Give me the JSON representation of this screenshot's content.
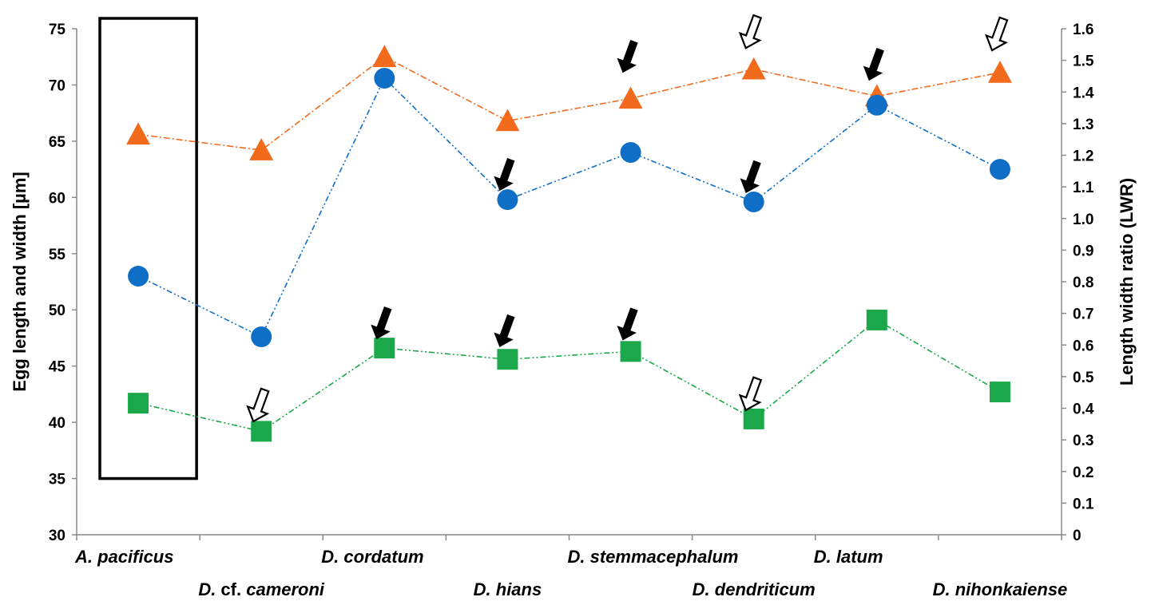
{
  "chart_data": {
    "type": "line",
    "categories": [
      "A. pacificus",
      "D. cf. cameroni",
      "D. cordatum",
      "D. hians",
      "D. stemmacephalum",
      "D. dendriticum",
      "D. latum",
      "D. nihonkaiense"
    ],
    "category_label_parts": [
      [
        "A. pacificus"
      ],
      [
        "D.",
        " cf. ",
        "cameroni"
      ],
      [
        "D. cordatum"
      ],
      [
        "D. hians"
      ],
      [
        "D. stemmacephalum"
      ],
      [
        "D. dendriticum"
      ],
      [
        "D. latum"
      ],
      [
        "D. nihonkaiense"
      ]
    ],
    "ylabel": "Egg length and width [µm]",
    "y2label": "Length width ratio (LWR)",
    "ylim": [
      30,
      75
    ],
    "y2lim": [
      0,
      1.6
    ],
    "yticks": [
      "30",
      "35",
      "40",
      "45",
      "50",
      "55",
      "60",
      "65",
      "70",
      "75"
    ],
    "y2ticks": [
      "0",
      "0.1",
      "0.2",
      "0.3",
      "0.4",
      "0.5",
      "0.6",
      "0.7",
      "0.8",
      "0.9",
      "1.0",
      "1.1",
      "1.2",
      "1.3",
      "1.4",
      "1.5",
      "1.6"
    ],
    "series": [
      {
        "marker": "triangle",
        "color": "#f26b1d",
        "axis": "left",
        "values": [
          65.6,
          64.2,
          72.5,
          66.8,
          68.8,
          71.4,
          69.0,
          71.1
        ]
      },
      {
        "marker": "circle",
        "color": "#0f6fc6",
        "axis": "left",
        "values": [
          53.0,
          47.6,
          70.6,
          59.8,
          64.0,
          59.6,
          68.2,
          62.5
        ]
      },
      {
        "marker": "square",
        "color": "#1aa84a",
        "axis": "left",
        "values": [
          41.7,
          39.2,
          46.6,
          45.6,
          46.3,
          40.3,
          49.1,
          42.7
        ]
      }
    ],
    "annotations": [
      {
        "type": "filled-arrow",
        "category": 3,
        "value": 62.0
      },
      {
        "type": "filled-arrow",
        "category": 4,
        "value": 72.5
      },
      {
        "type": "filled-arrow",
        "category": 5,
        "value": 61.8
      },
      {
        "type": "filled-arrow",
        "category": 6,
        "value": 71.8
      },
      {
        "type": "open-arrow",
        "category": 5,
        "value": 74.7
      },
      {
        "type": "open-arrow",
        "category": 7,
        "value": 74.5
      },
      {
        "type": "filled-arrow",
        "category": 2,
        "value": 48.8
      },
      {
        "type": "filled-arrow",
        "category": 3,
        "value": 48.1
      },
      {
        "type": "filled-arrow",
        "category": 4,
        "value": 48.7
      },
      {
        "type": "open-arrow",
        "category": 1,
        "value": 41.5
      },
      {
        "type": "open-arrow",
        "category": 5,
        "value": 42.5
      }
    ],
    "highlight_box": {
      "category": 0,
      "y_range": [
        35,
        75
      ]
    },
    "grid": false,
    "legend": "none"
  }
}
